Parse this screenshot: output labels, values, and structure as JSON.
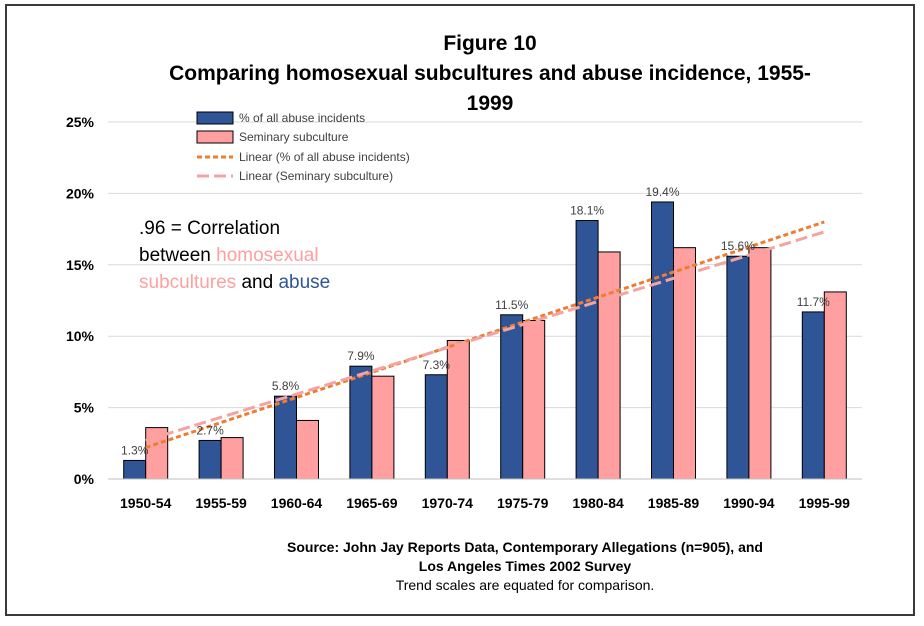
{
  "chart_data": {
    "type": "bar",
    "title_lines": [
      "Figure 10",
      "Comparing homosexual subcultures and abuse incidence, 1955-",
      "1999"
    ],
    "categories": [
      "1950-54",
      "1955-59",
      "1960-64",
      "1965-69",
      "1970-74",
      "1975-79",
      "1980-84",
      "1985-89",
      "1990-94",
      "1995-99"
    ],
    "series": [
      {
        "name": "% of all abuse incidents",
        "color": "#2f5597",
        "values": [
          1.3,
          2.7,
          5.8,
          7.9,
          7.3,
          11.5,
          18.1,
          19.4,
          15.6,
          11.7
        ],
        "data_labels": [
          "1.3%",
          "2.7%",
          "5.8%",
          "7.9%",
          "7.3%",
          "11.5%",
          "18.1%",
          "19.4%",
          "15.6%",
          "11.7%"
        ]
      },
      {
        "name": "Seminary subculture",
        "color": "#ff9f9f",
        "values": [
          3.6,
          2.9,
          4.1,
          7.2,
          9.7,
          11.1,
          15.9,
          16.2,
          16.2,
          13.1
        ]
      }
    ],
    "trendlines": [
      {
        "name": "Linear (% of all abuse incidents)",
        "color": "#ed7d31",
        "style": "short-dash",
        "start": 2.2,
        "end": 18.0
      },
      {
        "name": "Linear (Seminary subculture)",
        "color": "#f4a3a3",
        "style": "long-dash",
        "start": 2.7,
        "end": 17.3
      }
    ],
    "ylim": [
      0,
      25
    ],
    "yticks": [
      0,
      5,
      10,
      15,
      20,
      25
    ],
    "ytick_labels": [
      "0%",
      "5%",
      "10%",
      "15%",
      "20%",
      "25%"
    ],
    "grid": true,
    "legend_position": "top-left",
    "annotation": {
      "value": ".96",
      "line1_rest": " = Correlation",
      "line2_word": "between ",
      "line2_colored": "homosexual",
      "line3_colored": "subcultures",
      "line3_and": " and ",
      "line3_blue": "abuse"
    },
    "source_lines": [
      "Source: John Jay Reports Data, Contemporary Allegations (n=905), and",
      "Los Angeles Times 2002 Survey"
    ],
    "note": "Trend scales are equated for comparison."
  }
}
